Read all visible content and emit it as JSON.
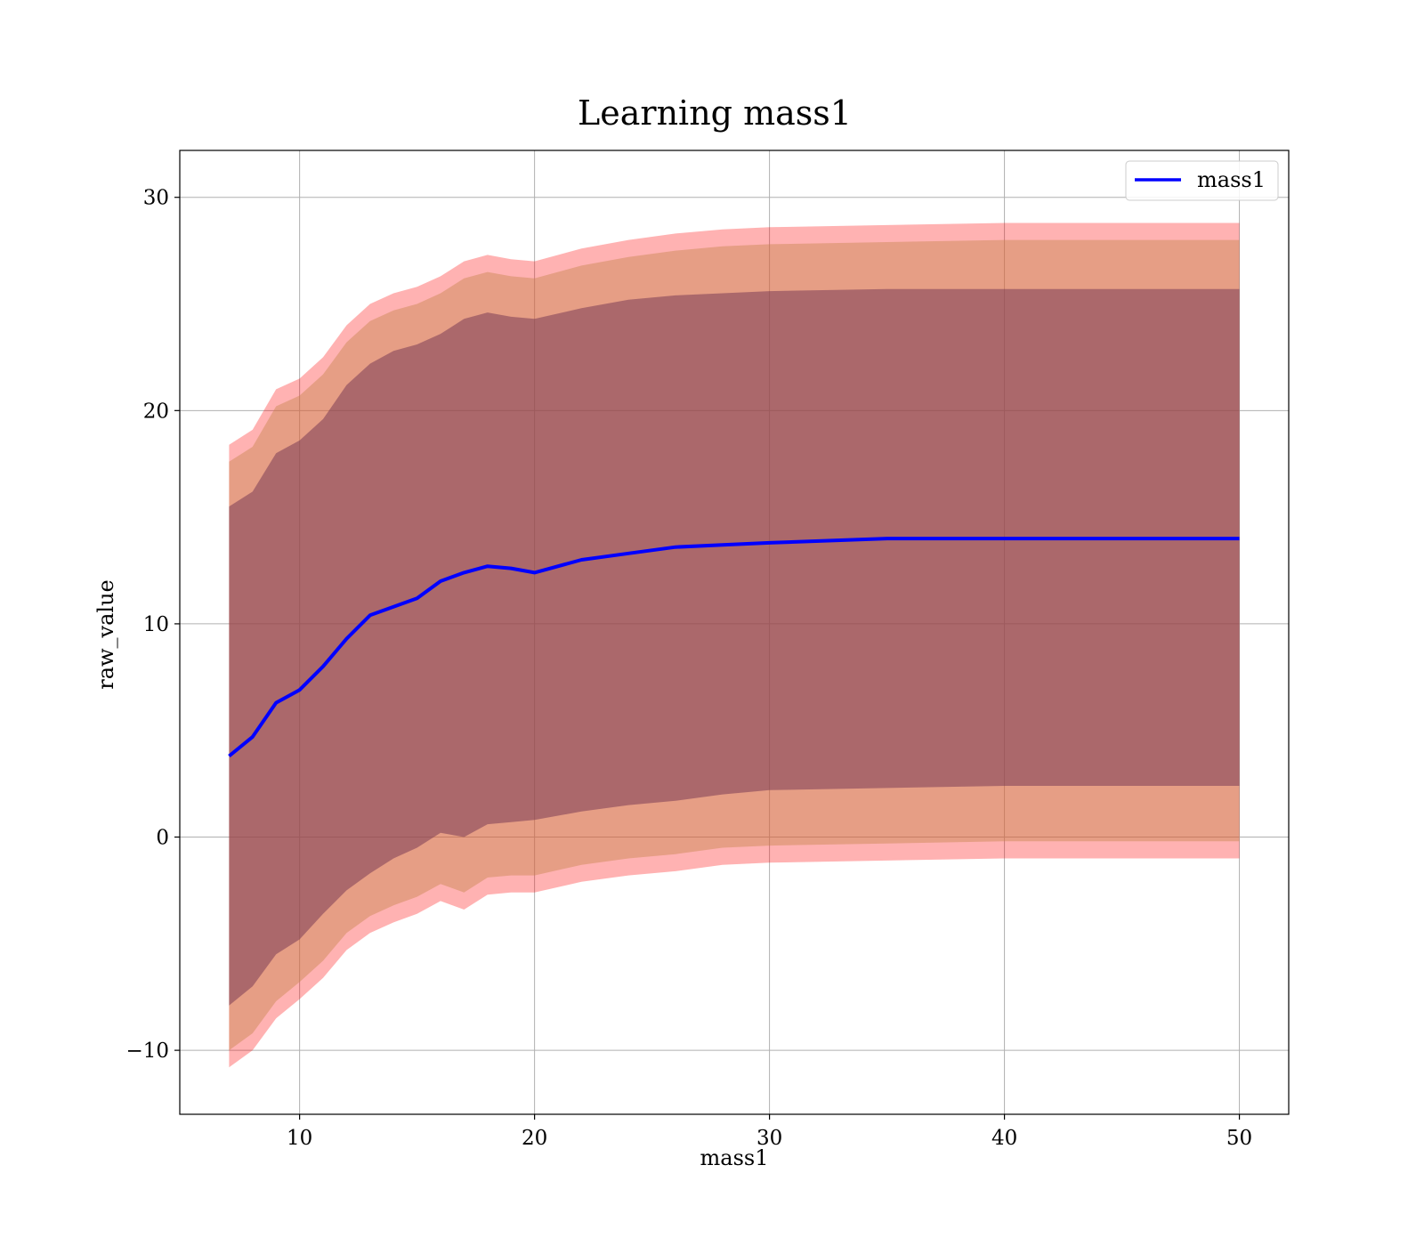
{
  "chart_data": {
    "type": "line",
    "title": "Learning mass1",
    "xlabel": "mass1",
    "ylabel": "raw_value",
    "xlim": [
      4.9,
      52.1
    ],
    "ylim": [
      -13,
      32.2
    ],
    "xticks": [
      10,
      20,
      30,
      40,
      50
    ],
    "yticks": [
      -10,
      0,
      10,
      20,
      30
    ],
    "xtick_labels": [
      "10",
      "20",
      "30",
      "40",
      "50"
    ],
    "ytick_labels": [
      "−10",
      "0",
      "10",
      "20",
      "30"
    ],
    "grid": true,
    "legend": {
      "position": "top-right",
      "entries": [
        "mass1"
      ]
    },
    "colors": {
      "line": "#0000ff",
      "band_outer": "#ff0000",
      "band_middle": "#c8864e",
      "band_inner": "#7a3d55"
    },
    "series": [
      {
        "name": "mass1",
        "x": [
          7,
          8,
          9,
          10,
          11,
          12,
          13,
          14,
          15,
          16,
          17,
          18,
          19,
          20,
          22,
          24,
          26,
          28,
          30,
          35,
          40,
          45,
          50
        ],
        "y": [
          3.8,
          4.7,
          6.3,
          6.9,
          8.0,
          9.3,
          10.4,
          10.8,
          11.2,
          12.0,
          12.4,
          12.7,
          12.6,
          12.4,
          13.0,
          13.3,
          13.6,
          13.7,
          13.8,
          14.0,
          14.0,
          14.0,
          14.0
        ]
      }
    ],
    "bands": [
      {
        "level": "outer",
        "x": [
          7,
          8,
          9,
          10,
          11,
          12,
          13,
          14,
          15,
          16,
          17,
          18,
          19,
          20,
          22,
          24,
          26,
          28,
          30,
          35,
          40,
          45,
          50
        ],
        "lower": [
          -10.8,
          -10.0,
          -8.5,
          -7.6,
          -6.6,
          -5.3,
          -4.5,
          -4.0,
          -3.6,
          -3.0,
          -3.4,
          -2.7,
          -2.6,
          -2.6,
          -2.1,
          -1.8,
          -1.6,
          -1.3,
          -1.2,
          -1.1,
          -1.0,
          -1.0,
          -1.0
        ],
        "upper": [
          18.4,
          19.1,
          21.0,
          21.5,
          22.5,
          24.0,
          25.0,
          25.5,
          25.8,
          26.3,
          27.0,
          27.3,
          27.1,
          27.0,
          27.6,
          28.0,
          28.3,
          28.5,
          28.6,
          28.7,
          28.8,
          28.8,
          28.8
        ]
      },
      {
        "level": "middle",
        "x": [
          7,
          8,
          9,
          10,
          11,
          12,
          13,
          14,
          15,
          16,
          17,
          18,
          19,
          20,
          22,
          24,
          26,
          28,
          30,
          35,
          40,
          45,
          50
        ],
        "lower": [
          -10.0,
          -9.2,
          -7.7,
          -6.8,
          -5.8,
          -4.5,
          -3.7,
          -3.2,
          -2.8,
          -2.2,
          -2.6,
          -1.9,
          -1.8,
          -1.8,
          -1.3,
          -1.0,
          -0.8,
          -0.5,
          -0.4,
          -0.3,
          -0.2,
          -0.2,
          -0.2
        ],
        "upper": [
          17.6,
          18.3,
          20.2,
          20.7,
          21.7,
          23.2,
          24.2,
          24.7,
          25.0,
          25.5,
          26.2,
          26.5,
          26.3,
          26.2,
          26.8,
          27.2,
          27.5,
          27.7,
          27.8,
          27.9,
          28.0,
          28.0,
          28.0
        ]
      },
      {
        "level": "inner",
        "x": [
          7,
          8,
          9,
          10,
          11,
          12,
          13,
          14,
          15,
          16,
          17,
          18,
          19,
          20,
          22,
          24,
          26,
          28,
          30,
          35,
          40,
          45,
          50
        ],
        "lower": [
          -7.9,
          -7.0,
          -5.5,
          -4.8,
          -3.6,
          -2.5,
          -1.7,
          -1.0,
          -0.5,
          0.2,
          0.0,
          0.6,
          0.7,
          0.8,
          1.2,
          1.5,
          1.7,
          2.0,
          2.2,
          2.3,
          2.4,
          2.4,
          2.4
        ],
        "upper": [
          15.5,
          16.2,
          18.0,
          18.6,
          19.6,
          21.2,
          22.2,
          22.8,
          23.1,
          23.6,
          24.3,
          24.6,
          24.4,
          24.3,
          24.8,
          25.2,
          25.4,
          25.5,
          25.6,
          25.7,
          25.7,
          25.7,
          25.7
        ]
      }
    ]
  }
}
